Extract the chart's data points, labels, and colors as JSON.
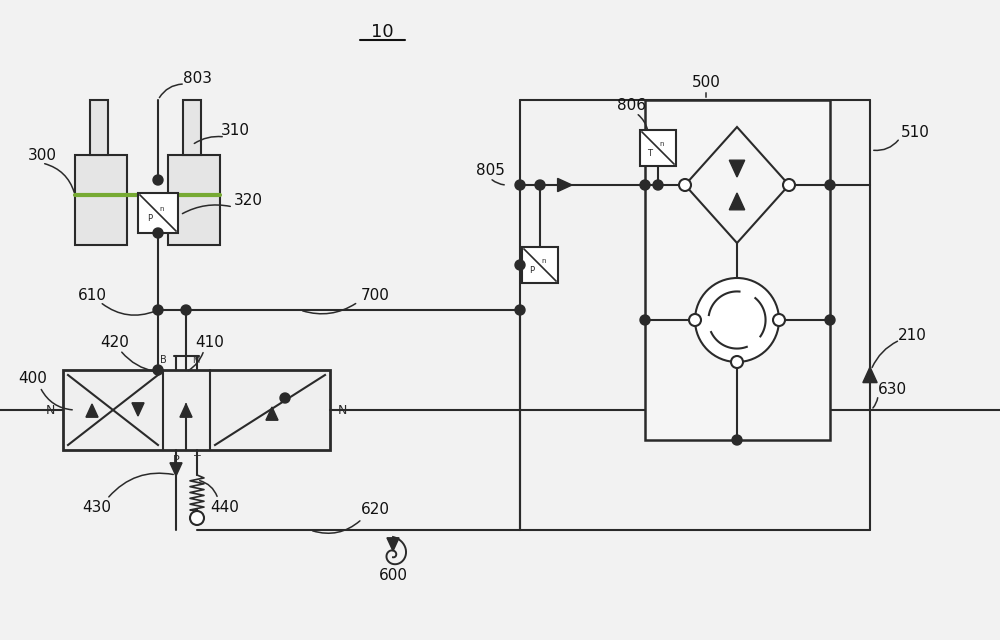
{
  "bg_color": "#f2f2f2",
  "line_color": "#2a2a2a",
  "lw": 1.5,
  "fig_w": 10.0,
  "fig_h": 6.4,
  "title": "10",
  "labels": [
    "10",
    "300",
    "803",
    "310",
    "320",
    "700",
    "610",
    "420",
    "410",
    "400",
    "430",
    "440",
    "620",
    "600",
    "805",
    "806",
    "500",
    "510",
    "210",
    "630"
  ]
}
